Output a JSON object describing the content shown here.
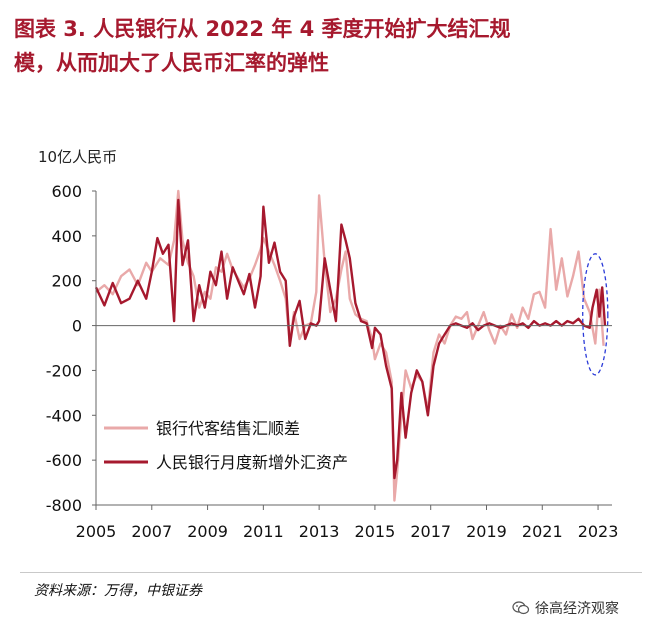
{
  "header": {
    "title_line1": "图表  3.   人民银行从 2022 年 4 季度开始扩大结汇规",
    "title_line2": "模，从而加大了人民币汇率的弹性"
  },
  "footer": {
    "source": "资料来源：万得，中银证券",
    "watermark": "徐高经济观察",
    "watermark_icon": "wechat-icon"
  },
  "colors": {
    "title": "#a6192e",
    "series_bank": "#e9a9a9",
    "series_pboc": "#a6192e",
    "highlight_ellipse": "#2b3bd8"
  },
  "chart_data": {
    "type": "line",
    "unit_label": "10亿人民币",
    "xlim": [
      2005,
      2023.5
    ],
    "ylim": [
      -800,
      600
    ],
    "yticks": [
      -800,
      -600,
      -400,
      -200,
      0,
      200,
      400,
      600
    ],
    "xticks": [
      2005,
      2007,
      2009,
      2011,
      2013,
      2015,
      2017,
      2019,
      2021,
      2023
    ],
    "legend_position": "lower-left",
    "grid": false,
    "highlight": {
      "x_center": 2022.9,
      "y_center": 50,
      "x_radius": 0.45,
      "y_radius": 270
    },
    "series": [
      {
        "name": "银行代客结售汇顺差",
        "points": [
          [
            2005.0,
            150
          ],
          [
            2005.3,
            180
          ],
          [
            2005.6,
            140
          ],
          [
            2005.9,
            220
          ],
          [
            2006.2,
            250
          ],
          [
            2006.5,
            180
          ],
          [
            2006.8,
            280
          ],
          [
            2007.0,
            240
          ],
          [
            2007.3,
            300
          ],
          [
            2007.6,
            270
          ],
          [
            2007.8,
            380
          ],
          [
            2007.95,
            600
          ],
          [
            2008.1,
            380
          ],
          [
            2008.3,
            280
          ],
          [
            2008.5,
            220
          ],
          [
            2008.7,
            80
          ],
          [
            2008.9,
            150
          ],
          [
            2009.1,
            120
          ],
          [
            2009.3,
            260
          ],
          [
            2009.5,
            240
          ],
          [
            2009.7,
            320
          ],
          [
            2009.9,
            250
          ],
          [
            2010.1,
            210
          ],
          [
            2010.3,
            170
          ],
          [
            2010.5,
            210
          ],
          [
            2010.7,
            270
          ],
          [
            2010.9,
            340
          ],
          [
            2011.0,
            390
          ],
          [
            2011.2,
            330
          ],
          [
            2011.4,
            270
          ],
          [
            2011.6,
            200
          ],
          [
            2011.8,
            120
          ],
          [
            2011.95,
            -80
          ],
          [
            2012.1,
            60
          ],
          [
            2012.3,
            -60
          ],
          [
            2012.5,
            0
          ],
          [
            2012.7,
            10
          ],
          [
            2012.9,
            150
          ],
          [
            2013.0,
            580
          ],
          [
            2013.2,
            280
          ],
          [
            2013.4,
            60
          ],
          [
            2013.6,
            120
          ],
          [
            2013.8,
            250
          ],
          [
            2013.95,
            330
          ],
          [
            2014.1,
            120
          ],
          [
            2014.3,
            50
          ],
          [
            2014.5,
            30
          ],
          [
            2014.7,
            20
          ],
          [
            2014.9,
            -60
          ],
          [
            2015.0,
            -150
          ],
          [
            2015.2,
            -80
          ],
          [
            2015.4,
            -120
          ],
          [
            2015.6,
            -250
          ],
          [
            2015.7,
            -780
          ],
          [
            2015.8,
            -650
          ],
          [
            2015.95,
            -400
          ],
          [
            2016.1,
            -200
          ],
          [
            2016.3,
            -280
          ],
          [
            2016.5,
            -220
          ],
          [
            2016.7,
            -250
          ],
          [
            2016.9,
            -380
          ],
          [
            2017.1,
            -120
          ],
          [
            2017.3,
            -40
          ],
          [
            2017.5,
            -80
          ],
          [
            2017.7,
            0
          ],
          [
            2017.9,
            40
          ],
          [
            2018.1,
            30
          ],
          [
            2018.3,
            60
          ],
          [
            2018.5,
            -60
          ],
          [
            2018.7,
            0
          ],
          [
            2018.9,
            60
          ],
          [
            2019.1,
            -20
          ],
          [
            2019.3,
            -80
          ],
          [
            2019.5,
            0
          ],
          [
            2019.7,
            -40
          ],
          [
            2019.9,
            50
          ],
          [
            2020.1,
            -10
          ],
          [
            2020.3,
            80
          ],
          [
            2020.5,
            30
          ],
          [
            2020.7,
            140
          ],
          [
            2020.9,
            150
          ],
          [
            2021.1,
            80
          ],
          [
            2021.3,
            430
          ],
          [
            2021.5,
            160
          ],
          [
            2021.7,
            300
          ],
          [
            2021.9,
            130
          ],
          [
            2022.1,
            220
          ],
          [
            2022.3,
            330
          ],
          [
            2022.5,
            120
          ],
          [
            2022.7,
            60
          ],
          [
            2022.9,
            -80
          ],
          [
            2023.05,
            160
          ],
          [
            2023.2,
            -90
          ]
        ]
      },
      {
        "name": "人民银行月度新增外汇资产",
        "points": [
          [
            2005.0,
            170
          ],
          [
            2005.3,
            90
          ],
          [
            2005.6,
            190
          ],
          [
            2005.9,
            100
          ],
          [
            2006.2,
            120
          ],
          [
            2006.5,
            200
          ],
          [
            2006.8,
            120
          ],
          [
            2007.0,
            240
          ],
          [
            2007.2,
            390
          ],
          [
            2007.4,
            320
          ],
          [
            2007.6,
            360
          ],
          [
            2007.8,
            20
          ],
          [
            2007.95,
            560
          ],
          [
            2008.1,
            270
          ],
          [
            2008.3,
            380
          ],
          [
            2008.5,
            20
          ],
          [
            2008.7,
            180
          ],
          [
            2008.9,
            80
          ],
          [
            2009.1,
            240
          ],
          [
            2009.3,
            180
          ],
          [
            2009.5,
            330
          ],
          [
            2009.7,
            120
          ],
          [
            2009.9,
            260
          ],
          [
            2010.1,
            200
          ],
          [
            2010.3,
            140
          ],
          [
            2010.5,
            230
          ],
          [
            2010.7,
            80
          ],
          [
            2010.9,
            220
          ],
          [
            2011.0,
            530
          ],
          [
            2011.2,
            280
          ],
          [
            2011.4,
            370
          ],
          [
            2011.6,
            240
          ],
          [
            2011.8,
            200
          ],
          [
            2011.95,
            -90
          ],
          [
            2012.1,
            40
          ],
          [
            2012.3,
            110
          ],
          [
            2012.5,
            -60
          ],
          [
            2012.7,
            10
          ],
          [
            2012.9,
            0
          ],
          [
            2013.0,
            20
          ],
          [
            2013.2,
            300
          ],
          [
            2013.4,
            160
          ],
          [
            2013.6,
            20
          ],
          [
            2013.8,
            450
          ],
          [
            2013.95,
            380
          ],
          [
            2014.1,
            300
          ],
          [
            2014.3,
            100
          ],
          [
            2014.5,
            20
          ],
          [
            2014.7,
            10
          ],
          [
            2014.9,
            -100
          ],
          [
            2015.0,
            -10
          ],
          [
            2015.2,
            -40
          ],
          [
            2015.4,
            -180
          ],
          [
            2015.6,
            -280
          ],
          [
            2015.7,
            -680
          ],
          [
            2015.8,
            -600
          ],
          [
            2015.95,
            -300
          ],
          [
            2016.1,
            -500
          ],
          [
            2016.3,
            -300
          ],
          [
            2016.5,
            -200
          ],
          [
            2016.7,
            -250
          ],
          [
            2016.9,
            -400
          ],
          [
            2017.1,
            -180
          ],
          [
            2017.3,
            -80
          ],
          [
            2017.5,
            -40
          ],
          [
            2017.7,
            0
          ],
          [
            2017.9,
            10
          ],
          [
            2018.1,
            0
          ],
          [
            2018.3,
            -10
          ],
          [
            2018.5,
            10
          ],
          [
            2018.7,
            -20
          ],
          [
            2018.9,
            0
          ],
          [
            2019.1,
            10
          ],
          [
            2019.3,
            0
          ],
          [
            2019.5,
            -10
          ],
          [
            2019.7,
            0
          ],
          [
            2019.9,
            10
          ],
          [
            2020.1,
            0
          ],
          [
            2020.3,
            10
          ],
          [
            2020.5,
            -10
          ],
          [
            2020.7,
            20
          ],
          [
            2020.9,
            0
          ],
          [
            2021.1,
            10
          ],
          [
            2021.3,
            0
          ],
          [
            2021.5,
            20
          ],
          [
            2021.7,
            0
          ],
          [
            2021.9,
            20
          ],
          [
            2022.1,
            10
          ],
          [
            2022.3,
            30
          ],
          [
            2022.5,
            0
          ],
          [
            2022.7,
            -10
          ],
          [
            2022.8,
            80
          ],
          [
            2022.95,
            160
          ],
          [
            2023.05,
            40
          ],
          [
            2023.15,
            170
          ],
          [
            2023.25,
            0
          ]
        ]
      }
    ]
  }
}
